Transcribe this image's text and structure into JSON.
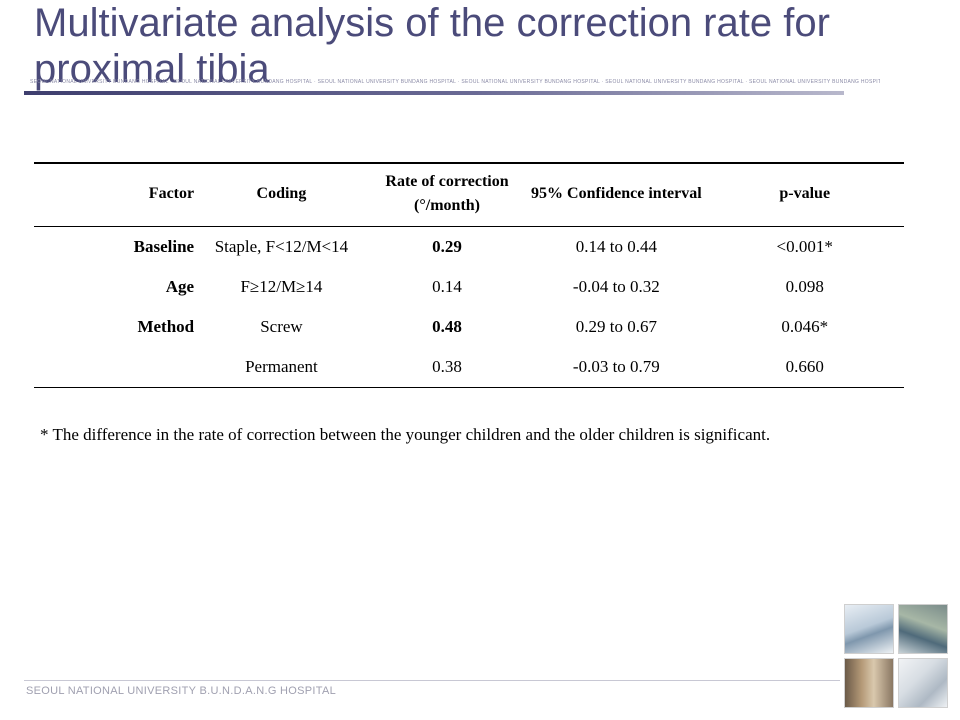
{
  "header": {
    "title": "Multivariate analysis of the correction rate for proximal tibia",
    "watermark": "SEOUL NATIONAL UNIVERSITY BUNDANG HOSPITAL · SEOUL NATIONAL UNIVERSITY BUNDANG HOSPITAL · SEOUL NATIONAL UNIVERSITY BUNDANG HOSPITAL · SEOUL NATIONAL UNIVERSITY BUNDANG HOSPITAL · SEOUL NATIONAL UNIVERSITY BUNDANG HOSPITAL · SEOUL NATIONAL UNIVERSITY BUNDANG HOSPITAL"
  },
  "table": {
    "headers": {
      "factor": "Factor",
      "coding": "Coding",
      "rate": "Rate of correction (°/month)",
      "ci": "95% Confidence interval",
      "pvalue": "p-value"
    },
    "rows": [
      {
        "factor": "Baseline",
        "coding": "Staple, F<12/M<14",
        "rate": "0.29",
        "ci": "0.14 to 0.44",
        "pvalue": "<0.001*"
      },
      {
        "factor": "Age",
        "coding": "F≥12/M≥14",
        "rate": "0.14",
        "ci": "-0.04 to 0.32",
        "pvalue": "0.098"
      },
      {
        "factor": "Method",
        "coding": "Screw",
        "rate": "0.48",
        "ci": "0.29 to 0.67",
        "pvalue": "0.046*"
      },
      {
        "factor": "",
        "coding": "Permanent",
        "rate": "0.38",
        "ci": "-0.03 to 0.79",
        "pvalue": "0.660"
      }
    ]
  },
  "footnote": "* The difference in the rate of correction between the younger children and the older children is significant.",
  "footer": {
    "hospital_name": "SEOUL NATIONAL UNIVERSITY B.U.N.D.A.N.G HOSPITAL"
  }
}
